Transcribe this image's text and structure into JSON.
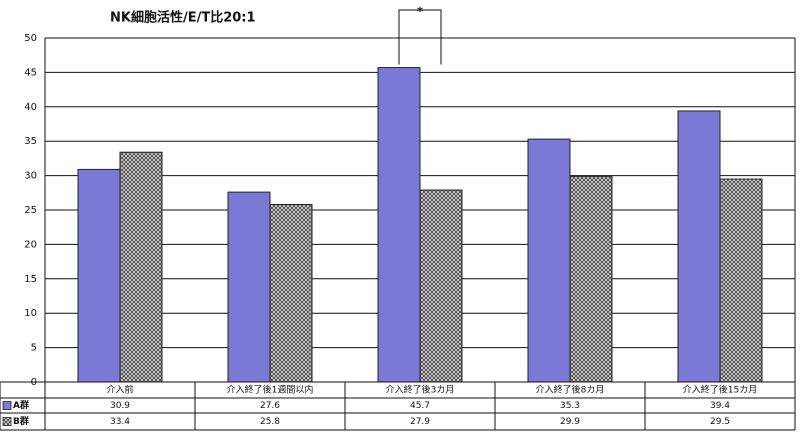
{
  "chart_data": {
    "type": "bar",
    "title": "NK細胞活性/E/T比20:1",
    "categories": [
      "介入前",
      "介入終了後1週間以内",
      "介入終了後3カ月",
      "介入終了後8カ月",
      "介入終了後15カ月"
    ],
    "series": [
      {
        "name": "A群",
        "color": "#7b78d6",
        "values": [
          30.9,
          27.6,
          45.7,
          35.3,
          39.4
        ]
      },
      {
        "name": "B群",
        "color": "#555555",
        "values": [
          33.4,
          25.8,
          27.9,
          29.9,
          29.5
        ]
      }
    ],
    "ylim": [
      0,
      50
    ],
    "yticks": [
      0,
      5,
      10,
      15,
      20,
      25,
      30,
      35,
      40,
      45,
      50
    ],
    "grid": true,
    "annotation": "*"
  }
}
